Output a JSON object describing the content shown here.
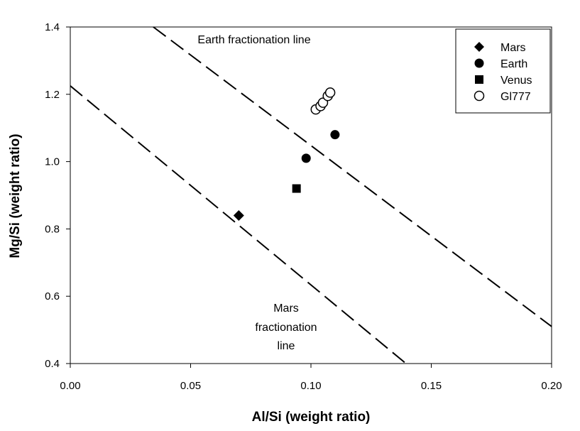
{
  "chart_data": {
    "type": "scatter",
    "title": "",
    "xlabel": "Al/Si (weight ratio)",
    "ylabel": "Mg/Si (weight ratio)",
    "xlim": [
      0.0,
      0.2
    ],
    "ylim": [
      0.4,
      1.4
    ],
    "x_ticks": [
      "0.00",
      "0.05",
      "0.10",
      "0.15",
      "0.20"
    ],
    "y_ticks": [
      "0.4",
      "0.6",
      "0.8",
      "1.0",
      "1.2",
      "1.4"
    ],
    "grid": false,
    "legend_position": "top-right",
    "series": [
      {
        "name": "Mars",
        "marker": "diamond",
        "filled": true,
        "points": [
          {
            "x": 0.07,
            "y": 0.84
          }
        ]
      },
      {
        "name": "Earth",
        "marker": "circle",
        "filled": true,
        "points": [
          {
            "x": 0.098,
            "y": 1.01
          },
          {
            "x": 0.11,
            "y": 1.08
          }
        ]
      },
      {
        "name": "Venus",
        "marker": "square",
        "filled": true,
        "points": [
          {
            "x": 0.094,
            "y": 0.92
          }
        ]
      },
      {
        "name": "Gl777",
        "marker": "circle",
        "filled": false,
        "points": [
          {
            "x": 0.102,
            "y": 1.155
          },
          {
            "x": 0.104,
            "y": 1.165
          },
          {
            "x": 0.105,
            "y": 1.175
          },
          {
            "x": 0.107,
            "y": 1.195
          },
          {
            "x": 0.108,
            "y": 1.205
          }
        ]
      }
    ],
    "lines": [
      {
        "name": "Earth fractionation line",
        "style": "dashed",
        "x1": 0.0345,
        "y1": 1.4,
        "x2": 0.2,
        "y2": 0.51,
        "label_lines": [
          "Earth fractionation line"
        ]
      },
      {
        "name": "Mars fractionation line",
        "style": "dashed",
        "x1": 0.0,
        "y1": 1.225,
        "x2": 0.1395,
        "y2": 0.4,
        "label_lines": [
          "Mars",
          "fractionation",
          "line"
        ]
      }
    ]
  }
}
